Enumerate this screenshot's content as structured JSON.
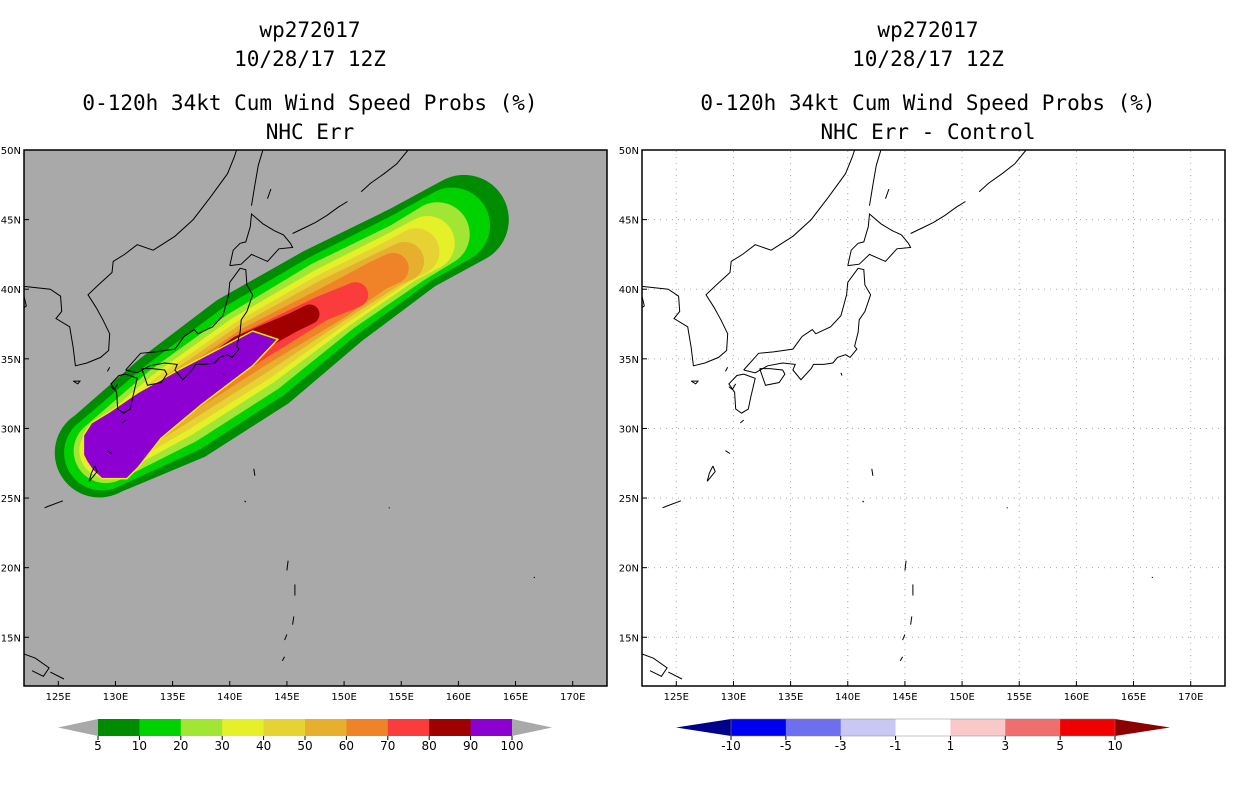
{
  "chart_data": [
    {
      "type": "heatmap",
      "title_lines": [
        "wp272017",
        "10/28/17 12Z",
        "0-120h 34kt Cum Wind Speed Probs (%)",
        "NHC Err"
      ],
      "xlim": [
        122,
        173
      ],
      "ylim": [
        11.5,
        50
      ],
      "x_ticks": [
        "125E",
        "130E",
        "135E",
        "140E",
        "145E",
        "150E",
        "155E",
        "160E",
        "165E",
        "170E"
      ],
      "y_ticks": [
        "15N",
        "20N",
        "25N",
        "30N",
        "35N",
        "40N",
        "45N",
        "50N"
      ],
      "background": "#a9a9a9",
      "colorbar": {
        "labels": [
          "5",
          "10",
          "20",
          "30",
          "40",
          "50",
          "60",
          "70",
          "80",
          "90",
          "100"
        ],
        "colors": [
          "#008c00",
          "#00d200",
          "#a0e632",
          "#e6f028",
          "#e6d232",
          "#e6af2d",
          "#f08228",
          "#fa3c3c",
          "#a00000",
          "#8c00d2"
        ]
      },
      "probability_swath": [
        {
          "level": 5,
          "color": "#008c00",
          "center": [
            [
              128.5,
              28.2
            ],
            [
              135,
              31.5
            ],
            [
              142,
              35.5
            ],
            [
              149,
              39.5
            ],
            [
              156,
              43
            ],
            [
              160.5,
              45
            ]
          ],
          "half_width_deg": 4.6
        },
        {
          "level": 10,
          "color": "#00d200",
          "center": [
            [
              128.7,
              28.2
            ],
            [
              135,
              31.5
            ],
            [
              142,
              35.5
            ],
            [
              149,
              39.5
            ],
            [
              156,
              43
            ],
            [
              159.5,
              44.6
            ]
          ],
          "half_width_deg": 3.9
        },
        {
          "level": 20,
          "color": "#a0e632",
          "center": [
            [
              129,
              28.3
            ],
            [
              135,
              31.6
            ],
            [
              142,
              35.5
            ],
            [
              149,
              39.5
            ],
            [
              155.5,
              42.6
            ],
            [
              158.3,
              44
            ]
          ],
          "half_width_deg": 3.3
        },
        {
          "level": 30,
          "color": "#e6f028",
          "center": [
            [
              129.2,
              28.4
            ],
            [
              135,
              31.7
            ],
            [
              142,
              35.6
            ],
            [
              149,
              39.4
            ],
            [
              155,
              42.3
            ],
            [
              157.3,
              43.3
            ]
          ],
          "half_width_deg": 2.8
        },
        {
          "level": 40,
          "color": "#e6d232",
          "center": [
            [
              129.4,
              28.5
            ],
            [
              135,
              31.8
            ],
            [
              142,
              35.6
            ],
            [
              149,
              39.3
            ],
            [
              154.5,
              41.9
            ],
            [
              156.3,
              42.7
            ]
          ],
          "half_width_deg": 2.4
        },
        {
          "level": 50,
          "color": "#e6af2d",
          "center": [
            [
              129.6,
              28.6
            ],
            [
              135,
              31.9
            ],
            [
              142,
              35.7
            ],
            [
              149,
              39.2
            ],
            [
              154,
              41.5
            ],
            [
              155.3,
              42
            ]
          ],
          "half_width_deg": 2.0
        },
        {
          "level": 60,
          "color": "#f08228",
          "center": [
            [
              129.8,
              28.7
            ],
            [
              135,
              32.0
            ],
            [
              142,
              35.8
            ],
            [
              149,
              39.0
            ],
            [
              153,
              41.0
            ],
            [
              154.3,
              41.5
            ]
          ],
          "half_width_deg": 1.6
        },
        {
          "level": 70,
          "color": "#fa3c3c",
          "center": [
            [
              130,
              28.8
            ],
            [
              135,
              32.1
            ],
            [
              142,
              35.9
            ],
            [
              148,
              38.6
            ],
            [
              151,
              39.6
            ]
          ],
          "half_width_deg": 1.3
        },
        {
          "level": 80,
          "color": "#a00000",
          "center": [
            [
              130.2,
              28.9
            ],
            [
              135,
              32.3
            ],
            [
              141,
              35.8
            ],
            [
              145.5,
              37.6
            ],
            [
              147,
              38.2
            ]
          ],
          "half_width_deg": 1.0
        }
      ],
      "probability_core": {
        "level": 90,
        "color": "#8c00d2",
        "polygon": [
          [
            127.2,
            29.5
          ],
          [
            127.2,
            28.1
          ],
          [
            127.5,
            27.6
          ],
          [
            128,
            27.0
          ],
          [
            128.8,
            26.4
          ],
          [
            131,
            26.4
          ],
          [
            132,
            27.2
          ],
          [
            134,
            29.3
          ],
          [
            137.5,
            31.7
          ],
          [
            142,
            34.5
          ],
          [
            144.2,
            36.4
          ],
          [
            142,
            37.0
          ],
          [
            139,
            35.7
          ],
          [
            135.5,
            34.2
          ],
          [
            132,
            32.6
          ],
          [
            129.5,
            31.2
          ],
          [
            127.9,
            30.4
          ]
        ]
      },
      "coastline": {
        "color": "#000000",
        "dashed_gridlines": false
      }
    },
    {
      "type": "heatmap",
      "title_lines": [
        "wp272017",
        "10/28/17 12Z",
        "0-120h 34kt Cum Wind Speed Probs (%)",
        "NHC Err - Control"
      ],
      "xlim": [
        122,
        173
      ],
      "ylim": [
        11.5,
        50
      ],
      "x_ticks": [
        "125E",
        "130E",
        "135E",
        "140E",
        "145E",
        "150E",
        "155E",
        "160E",
        "165E",
        "170E"
      ],
      "y_ticks": [
        "15N",
        "20N",
        "25N",
        "30N",
        "35N",
        "40N",
        "45N",
        "50N"
      ],
      "background": "#ffffff",
      "colorbar": {
        "labels": [
          "-10",
          "-5",
          "-3",
          "-1",
          "1",
          "3",
          "5",
          "10"
        ],
        "colors": [
          "#00008c",
          "#0000f0",
          "#6e6ef0",
          "#c8c8f5",
          "#ffffff",
          "#fac8c8",
          "#f06e6e",
          "#f00000",
          "#8c0000"
        ]
      },
      "coastline": {
        "color": "#000000",
        "dashed_gridlines": true
      }
    }
  ]
}
